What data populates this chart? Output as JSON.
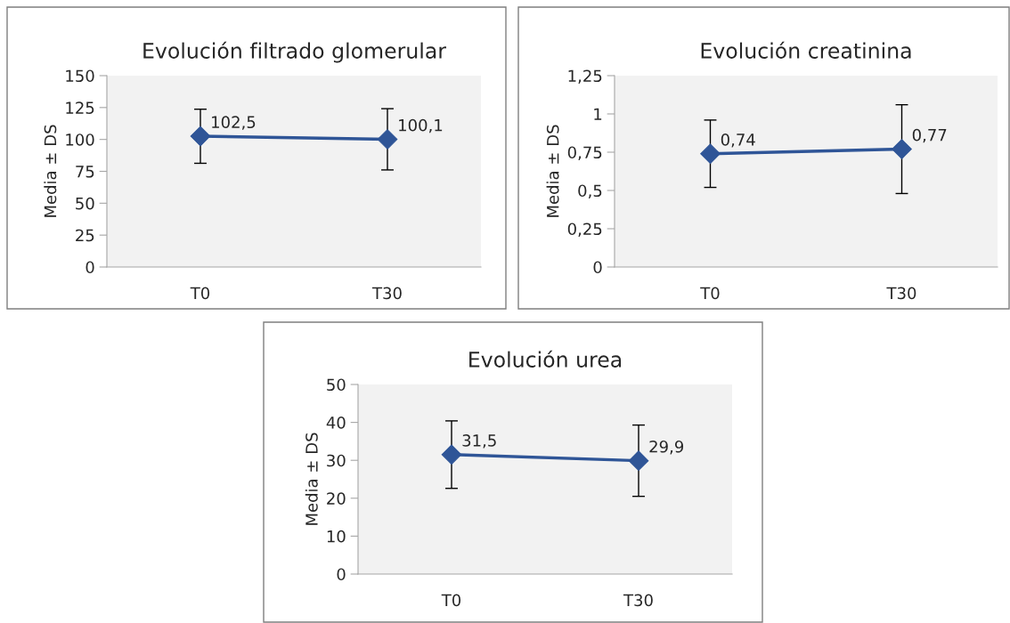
{
  "chart_data": [
    {
      "type": "line",
      "title": "Evolución filtrado glomerular",
      "ylabel": "Media ± DS",
      "categories": [
        "T0",
        "T30"
      ],
      "series": [
        {
          "color": "#2f5597",
          "values": [
            102.5,
            100.1
          ],
          "errors": [
            21.2,
            24
          ],
          "value_labels": [
            "102,5",
            "100,1"
          ]
        }
      ],
      "ylim": [
        0,
        150
      ],
      "yticks": [
        0,
        25,
        50,
        75,
        100,
        125,
        150
      ],
      "marker": "diamond",
      "grid": false,
      "legend": false
    },
    {
      "type": "line",
      "title": "Evolución creatinina",
      "ylabel": "Media ± DS",
      "categories": [
        "T0",
        "T30"
      ],
      "series": [
        {
          "color": "#2f5597",
          "values": [
            0.74,
            0.77
          ],
          "errors": [
            0.22,
            0.29
          ],
          "value_labels": [
            "0,74",
            "0,77"
          ]
        }
      ],
      "ylim": [
        0,
        1.25
      ],
      "yticks": [
        0,
        {
          "value": 0.25,
          "label": "0,25"
        },
        {
          "value": 0.5,
          "label": "0,5"
        },
        {
          "value": 0.75,
          "label": "0,75"
        },
        1,
        {
          "value": 1.25,
          "label": "1,25"
        }
      ],
      "marker": "diamond",
      "grid": false,
      "legend": false
    },
    {
      "type": "line",
      "title": "Evolución urea",
      "ylabel": "Media ± DS",
      "categories": [
        "T0",
        "T30"
      ],
      "series": [
        {
          "color": "#2f5597",
          "values": [
            31.5,
            29.9
          ],
          "errors": [
            8.9,
            9.4
          ],
          "value_labels": [
            "31,5",
            "29,9"
          ]
        }
      ],
      "ylim": [
        0,
        50
      ],
      "yticks": [
        0,
        10,
        20,
        30,
        40,
        50
      ],
      "marker": "diamond",
      "grid": false,
      "legend": false
    }
  ]
}
